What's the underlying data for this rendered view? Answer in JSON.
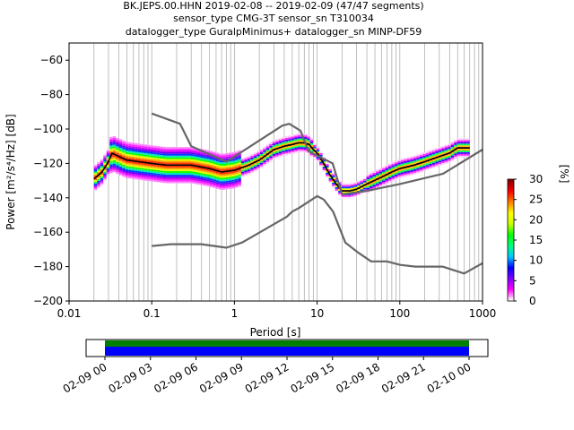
{
  "chart_data": {
    "type": "heatmap",
    "title_lines": [
      "BK.JEPS.00.HHN   2019-02-08 -- 2019-02-09  (47/47 segments)",
      "sensor_type CMG-3T sensor_sn T310034",
      "datalogger_type GuralpMinimus+ datalogger_sn MINP-DF59"
    ],
    "xlabel": "Period [s]",
    "ylabel": "Power [m²/s⁴/Hz] [dB]",
    "x_scale": "log",
    "xlim": [
      0.01,
      1000
    ],
    "ylim": [
      -200,
      -50
    ],
    "x_ticks": [
      0.01,
      0.1,
      1,
      10,
      100,
      1000
    ],
    "x_tick_labels": [
      "0.01",
      "0.1",
      "1",
      "10",
      "100",
      "1000"
    ],
    "y_ticks": [
      -60,
      -80,
      -100,
      -120,
      -140,
      -160,
      -180,
      -200
    ],
    "grid": "vertical grid at log minor ticks (period bins)",
    "colorbar": {
      "label": "[%]",
      "range": [
        0,
        30
      ],
      "ticks": [
        0,
        5,
        10,
        15,
        20,
        25,
        30
      ],
      "colormap": [
        "#ffffff",
        "#ff00ff",
        "#8000ff",
        "#0000ff",
        "#00c8ff",
        "#00ff80",
        "#00ff00",
        "#c8ff00",
        "#ffff00",
        "#ff8000",
        "#ff0000",
        "#8b0000"
      ]
    },
    "series": [
      {
        "name": "",
        "color": "#000000",
        "points": [
          [
            0.02,
            -129
          ],
          [
            0.025,
            -125
          ],
          [
            0.03,
            -119
          ],
          [
            0.033,
            -114
          ],
          [
            0.04,
            -116
          ],
          [
            0.05,
            -118
          ],
          [
            0.07,
            -119
          ],
          [
            0.1,
            -120
          ],
          [
            0.15,
            -121
          ],
          [
            0.2,
            -121
          ],
          [
            0.3,
            -121
          ],
          [
            0.5,
            -123
          ],
          [
            0.7,
            -125
          ],
          [
            1,
            -124
          ],
          [
            1.5,
            -121
          ],
          [
            2,
            -118
          ],
          [
            3,
            -112
          ],
          [
            4,
            -110
          ],
          [
            5,
            -109
          ],
          [
            6,
            -108
          ],
          [
            7,
            -108
          ],
          [
            8,
            -109
          ],
          [
            9,
            -112
          ],
          [
            10,
            -114
          ],
          [
            12,
            -120
          ],
          [
            14,
            -126
          ],
          [
            17,
            -132
          ],
          [
            20,
            -136
          ],
          [
            25,
            -136
          ],
          [
            30,
            -135
          ],
          [
            40,
            -132
          ],
          [
            60,
            -128
          ],
          [
            80,
            -125
          ],
          [
            100,
            -123
          ],
          [
            150,
            -121
          ],
          [
            200,
            -119
          ],
          [
            300,
            -116
          ],
          [
            400,
            -114
          ],
          [
            500,
            -111
          ],
          [
            700,
            -111
          ]
        ]
      },
      {
        "name": "",
        "color": "#666666",
        "points": [
          [
            0.1,
            -91
          ],
          [
            0.22,
            -97
          ],
          [
            0.3,
            -110
          ],
          [
            0.8,
            -119
          ],
          [
            3.8,
            -98
          ],
          [
            4.6,
            -97
          ],
          [
            6.3,
            -101
          ],
          [
            7.9,
            -113
          ],
          [
            15.4,
            -120
          ],
          [
            20,
            -138
          ],
          [
            40,
            -136
          ],
          [
            100,
            -132
          ],
          [
            333,
            -126
          ],
          [
            1000,
            -112
          ]
        ]
      },
      {
        "name": "",
        "color": "#666666",
        "points": [
          [
            0.1,
            -168
          ],
          [
            0.17,
            -167
          ],
          [
            0.4,
            -167
          ],
          [
            0.8,
            -169
          ],
          [
            1.24,
            -166
          ],
          [
            2.4,
            -158
          ],
          [
            4.3,
            -151
          ],
          [
            5.0,
            -148
          ],
          [
            6.0,
            -146
          ],
          [
            10,
            -139
          ],
          [
            12,
            -141
          ],
          [
            15.6,
            -148
          ],
          [
            21.9,
            -166
          ],
          [
            31.6,
            -172
          ],
          [
            45,
            -177
          ],
          [
            70,
            -177
          ],
          [
            101,
            -179
          ],
          [
            154,
            -180
          ],
          [
            328,
            -180
          ],
          [
            600,
            -184
          ],
          [
            1000,
            -178
          ]
        ]
      }
    ],
    "timeline": {
      "tick_labels": [
        "02-09 00",
        "02-09 03",
        "02-09 06",
        "02-09 09",
        "02-09 12",
        "02-09 15",
        "02-09 18",
        "02-09 21",
        "02-10 00"
      ],
      "bands": [
        "#008000",
        "#0000ff"
      ]
    }
  }
}
